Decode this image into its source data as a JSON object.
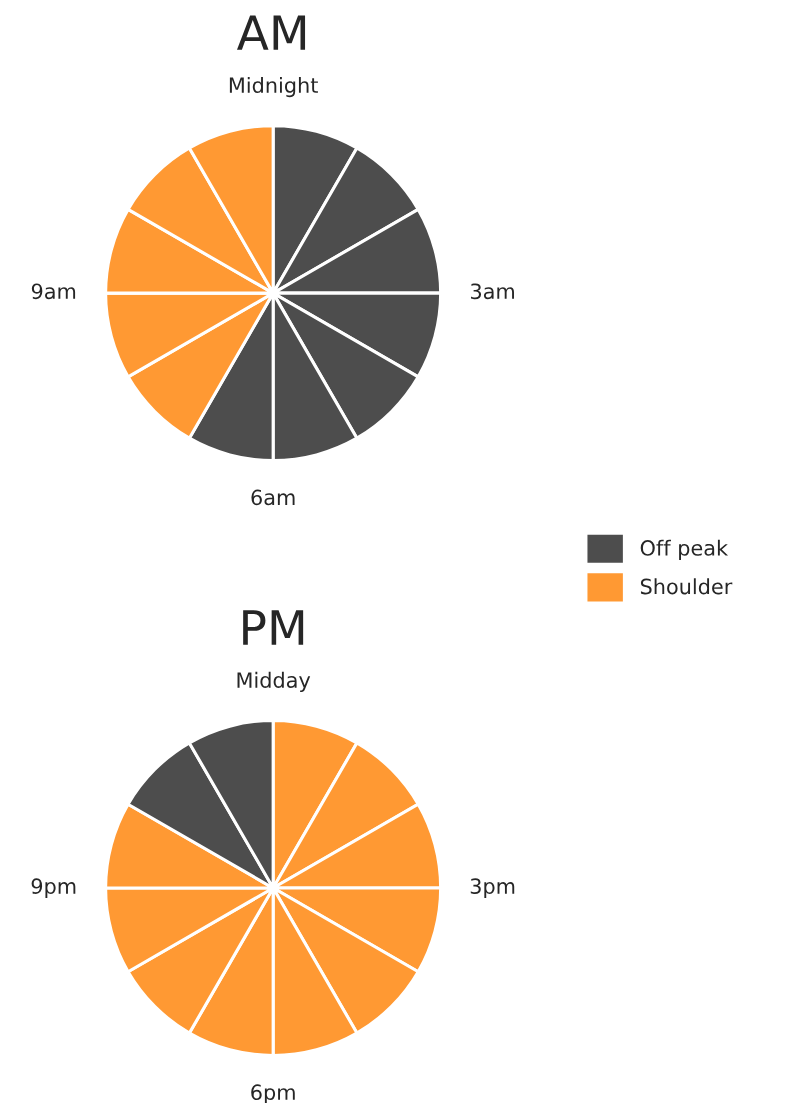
{
  "chart_data": [
    {
      "type": "pie",
      "title": "AM",
      "categories": [
        "Off peak",
        null,
        null,
        null,
        null,
        null,
        null,
        "Shoulder",
        null,
        null,
        null,
        null
      ],
      "values": [
        8.333,
        8.333,
        8.333,
        8.333,
        8.333,
        8.333,
        8.333,
        8.333,
        8.333,
        8.333,
        8.333,
        8.333
      ],
      "colors": [
        "#4d4d4d",
        "#4d4d4d",
        "#4d4d4d",
        "#4d4d4d",
        "#4d4d4d",
        "#4d4d4d",
        "#4d4d4d",
        "#ff9933",
        "#ff9933",
        "#ff9933",
        "#ff9933",
        "#ff9933"
      ],
      "annotations": [
        "Midnight",
        "3am",
        "6am",
        "9am"
      ],
      "legend": "right"
    },
    {
      "type": "pie",
      "title": "PM",
      "categories": [
        null,
        null,
        null,
        null,
        null,
        null,
        null,
        null,
        null,
        null,
        null,
        null
      ],
      "values": [
        8.333,
        8.333,
        8.333,
        8.333,
        8.333,
        8.333,
        8.333,
        8.333,
        8.333,
        8.333,
        8.333,
        8.333
      ],
      "colors": [
        "#ff9933",
        "#ff9933",
        "#ff9933",
        "#ff9933",
        "#ff9933",
        "#ff9933",
        "#ff9933",
        "#ff9933",
        "#ff9933",
        "#ff9933",
        "#4d4d4d",
        "#4d4d4d"
      ],
      "annotations": [
        "Midday",
        "3pm",
        "6pm",
        "9pm"
      ]
    }
  ]
}
